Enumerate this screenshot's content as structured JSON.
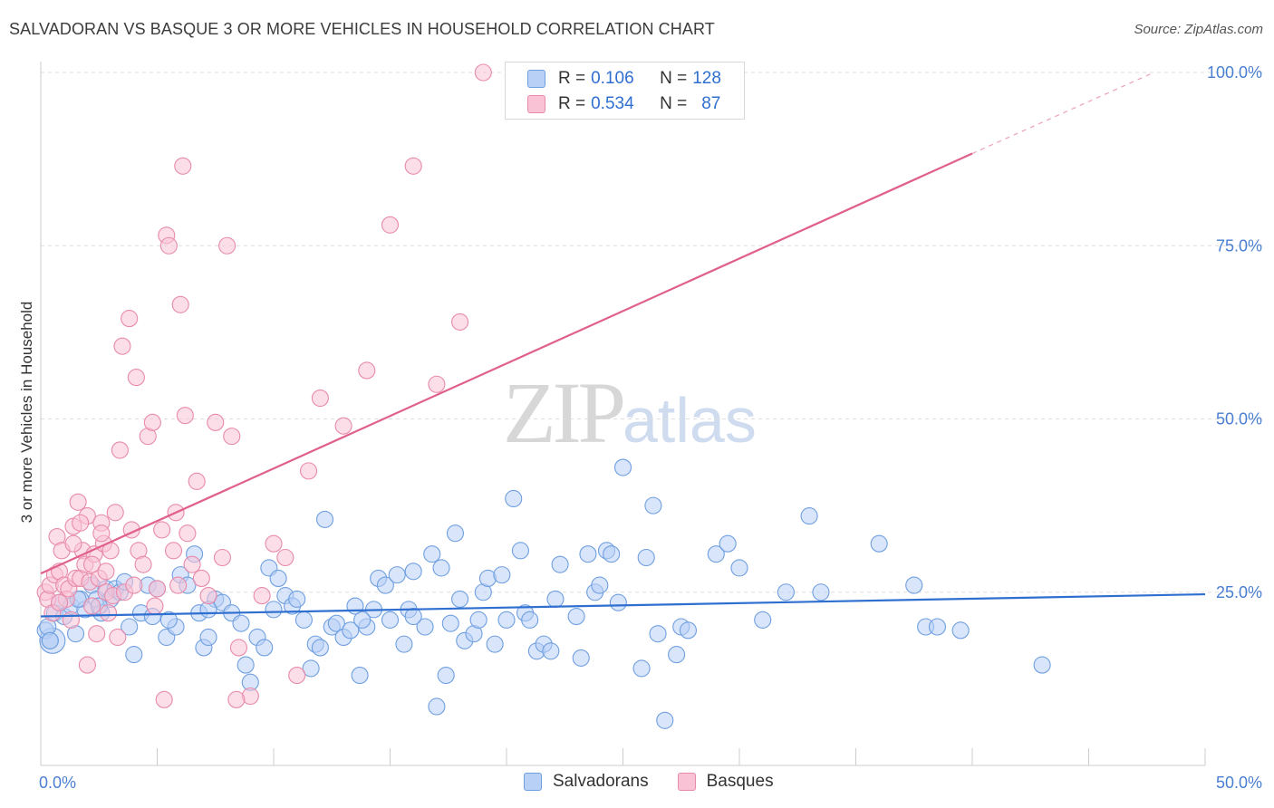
{
  "title": "SALVADORAN VS BASQUE 3 OR MORE VEHICLES IN HOUSEHOLD CORRELATION CHART",
  "source": "Source: ZipAtlas.com",
  "watermark": {
    "zip": "ZIP",
    "atlas": "atlas"
  },
  "legend": {
    "rows": [
      {
        "r_label": "R = ",
        "r_value": "0.106",
        "n_label": "N = ",
        "n_value": "128"
      },
      {
        "r_label": "R = ",
        "r_value": "0.534",
        "n_label": "N = ",
        "n_value": "87"
      }
    ]
  },
  "bottom_legend": {
    "items": [
      "Salvadorans",
      "Basques"
    ]
  },
  "colors": {
    "salvadorans_fill": "#b8d0f5",
    "salvadorans_stroke": "#6f9fe0",
    "salvadorans_line": "#2f6fd0",
    "basques_fill": "#f9c3d5",
    "basques_stroke": "#e88aaa",
    "basques_line": "#e0608a",
    "grid": "#dddddd",
    "axis_tick": "#4a7fd1"
  },
  "chart_data": {
    "type": "scatter",
    "title": "SALVADORAN VS BASQUE 3 OR MORE VEHICLES IN HOUSEHOLD CORRELATION CHART",
    "xlabel": "",
    "ylabel": "3 or more Vehicles in Household",
    "xlim": [
      0,
      50
    ],
    "ylim": [
      0,
      100
    ],
    "x_ticks": [
      "0.0%",
      "50.0%"
    ],
    "y_ticks": [
      "25.0%",
      "50.0%",
      "75.0%",
      "100.0%"
    ],
    "grid": true,
    "legend_position": "top-center",
    "series": [
      {
        "name": "Salvadorans",
        "R": 0.106,
        "N": 128,
        "trend": {
          "x": [
            0,
            50
          ],
          "y": [
            21.5,
            24.7
          ]
        },
        "points": [
          [
            0.2,
            19.5
          ],
          [
            0.4,
            18
          ],
          [
            0.6,
            22
          ],
          [
            0.8,
            23.5
          ],
          [
            1.0,
            21.5
          ],
          [
            1.3,
            23
          ],
          [
            1.5,
            19
          ],
          [
            1.7,
            24
          ],
          [
            1.9,
            22.5
          ],
          [
            2.2,
            26
          ],
          [
            2.4,
            24
          ],
          [
            2.6,
            22
          ],
          [
            2.8,
            25.5
          ],
          [
            3.0,
            24
          ],
          [
            3.2,
            25.5
          ],
          [
            3.4,
            25
          ],
          [
            3.6,
            26.5
          ],
          [
            3.8,
            20
          ],
          [
            4.0,
            16
          ],
          [
            4.3,
            22
          ],
          [
            4.6,
            26
          ],
          [
            4.8,
            21.5
          ],
          [
            5.0,
            25.5
          ],
          [
            5.4,
            18.5
          ],
          [
            5.8,
            20
          ],
          [
            6.0,
            27.5
          ],
          [
            6.3,
            26
          ],
          [
            6.6,
            30.5
          ],
          [
            6.8,
            22
          ],
          [
            7.0,
            17
          ],
          [
            7.2,
            18.5
          ],
          [
            7.5,
            24
          ],
          [
            7.8,
            23.5
          ],
          [
            8.2,
            22
          ],
          [
            8.6,
            20.5
          ],
          [
            8.8,
            14.5
          ],
          [
            9.0,
            12
          ],
          [
            9.3,
            18.5
          ],
          [
            9.6,
            17
          ],
          [
            9.8,
            28.5
          ],
          [
            10.0,
            22.5
          ],
          [
            10.2,
            27
          ],
          [
            10.5,
            24.5
          ],
          [
            10.8,
            23
          ],
          [
            11.0,
            24
          ],
          [
            11.3,
            21
          ],
          [
            11.6,
            14
          ],
          [
            11.8,
            17.5
          ],
          [
            12.0,
            17
          ],
          [
            12.2,
            35.5
          ],
          [
            12.5,
            20
          ],
          [
            12.7,
            20.5
          ],
          [
            13.0,
            18.5
          ],
          [
            13.3,
            19.5
          ],
          [
            13.5,
            23
          ],
          [
            13.7,
            13
          ],
          [
            14.0,
            20
          ],
          [
            14.3,
            22.5
          ],
          [
            14.5,
            27
          ],
          [
            14.8,
            26
          ],
          [
            15.0,
            21
          ],
          [
            15.3,
            27.5
          ],
          [
            15.6,
            17.5
          ],
          [
            15.8,
            22.5
          ],
          [
            16.0,
            28
          ],
          [
            16.5,
            20
          ],
          [
            16.8,
            30.5
          ],
          [
            17.0,
            8.5
          ],
          [
            17.2,
            28.5
          ],
          [
            17.4,
            13
          ],
          [
            17.6,
            20.5
          ],
          [
            17.8,
            33.5
          ],
          [
            18.0,
            24
          ],
          [
            18.2,
            18
          ],
          [
            18.6,
            19
          ],
          [
            18.8,
            21
          ],
          [
            19.0,
            25
          ],
          [
            19.2,
            27
          ],
          [
            19.5,
            17.5
          ],
          [
            19.8,
            27.5
          ],
          [
            20.0,
            21
          ],
          [
            20.3,
            38.5
          ],
          [
            20.6,
            31
          ],
          [
            20.8,
            22
          ],
          [
            21.0,
            21
          ],
          [
            21.3,
            16.5
          ],
          [
            21.6,
            17.5
          ],
          [
            21.9,
            16.5
          ],
          [
            22.1,
            24
          ],
          [
            22.3,
            29
          ],
          [
            23.0,
            21.5
          ],
          [
            23.2,
            15.5
          ],
          [
            23.5,
            30.5
          ],
          [
            23.8,
            25
          ],
          [
            24.0,
            26
          ],
          [
            24.3,
            31
          ],
          [
            24.5,
            30.5
          ],
          [
            24.8,
            23.5
          ],
          [
            25.0,
            43
          ],
          [
            25.8,
            14
          ],
          [
            26.0,
            30
          ],
          [
            26.3,
            37.5
          ],
          [
            26.5,
            19
          ],
          [
            26.8,
            6.5
          ],
          [
            27.3,
            16
          ],
          [
            27.5,
            20
          ],
          [
            27.8,
            19.5
          ],
          [
            29.0,
            30.5
          ],
          [
            29.5,
            32
          ],
          [
            30.0,
            28.5
          ],
          [
            31.0,
            21
          ],
          [
            32.0,
            25
          ],
          [
            33.0,
            36
          ],
          [
            33.5,
            25
          ],
          [
            36.0,
            32
          ],
          [
            37.5,
            26
          ],
          [
            38.0,
            20
          ],
          [
            38.5,
            20
          ],
          [
            39.5,
            19.5
          ],
          [
            43.0,
            14.5
          ],
          [
            1.6,
            24
          ],
          [
            2.5,
            23
          ],
          [
            5.5,
            21
          ],
          [
            7.2,
            22.5
          ],
          [
            13.8,
            21
          ],
          [
            16.0,
            21.5
          ],
          [
            0.3,
            20
          ],
          [
            0.4,
            18
          ]
        ]
      },
      {
        "name": "Basques",
        "R": 0.534,
        "N": 87,
        "trend": {
          "x": [
            0,
            40
          ],
          "y": [
            27.7,
            88.3
          ]
        },
        "trend_dashed": {
          "x": [
            40,
            47.8
          ],
          "y": [
            88.3,
            100
          ]
        },
        "points": [
          [
            0.2,
            25
          ],
          [
            0.3,
            24
          ],
          [
            0.4,
            26
          ],
          [
            0.5,
            22
          ],
          [
            0.6,
            27.5
          ],
          [
            0.7,
            33
          ],
          [
            0.8,
            28
          ],
          [
            0.9,
            31
          ],
          [
            1.0,
            26
          ],
          [
            1.1,
            24
          ],
          [
            1.2,
            25.5
          ],
          [
            1.3,
            21
          ],
          [
            1.4,
            34.5
          ],
          [
            1.5,
            27
          ],
          [
            1.6,
            38
          ],
          [
            1.7,
            27
          ],
          [
            1.8,
            31
          ],
          [
            1.9,
            29
          ],
          [
            2.0,
            36
          ],
          [
            2.1,
            26.5
          ],
          [
            2.2,
            23
          ],
          [
            2.3,
            30.5
          ],
          [
            2.4,
            19
          ],
          [
            2.5,
            27
          ],
          [
            2.6,
            35
          ],
          [
            2.7,
            32
          ],
          [
            2.8,
            25
          ],
          [
            2.9,
            22
          ],
          [
            3.0,
            31
          ],
          [
            3.1,
            24.5
          ],
          [
            3.2,
            36.5
          ],
          [
            3.4,
            45.5
          ],
          [
            3.6,
            25
          ],
          [
            3.8,
            64.5
          ],
          [
            3.9,
            34
          ],
          [
            4.0,
            26
          ],
          [
            4.2,
            31
          ],
          [
            4.4,
            29
          ],
          [
            4.6,
            47.5
          ],
          [
            4.8,
            49.5
          ],
          [
            5.0,
            25.5
          ],
          [
            5.2,
            34
          ],
          [
            5.4,
            76.5
          ],
          [
            5.5,
            75
          ],
          [
            5.7,
            31
          ],
          [
            5.9,
            26
          ],
          [
            6.0,
            66.5
          ],
          [
            6.1,
            86.5
          ],
          [
            6.2,
            50.5
          ],
          [
            6.5,
            29
          ],
          [
            6.7,
            41
          ],
          [
            6.9,
            27
          ],
          [
            7.2,
            24.5
          ],
          [
            7.5,
            49.5
          ],
          [
            7.8,
            30
          ],
          [
            8.0,
            75
          ],
          [
            8.2,
            47.5
          ],
          [
            8.5,
            17
          ],
          [
            9.0,
            10
          ],
          [
            9.5,
            24.5
          ],
          [
            10.0,
            32
          ],
          [
            10.5,
            30
          ],
          [
            11.0,
            13
          ],
          [
            11.5,
            42.5
          ],
          [
            12.0,
            53
          ],
          [
            13.0,
            49
          ],
          [
            14.0,
            57
          ],
          [
            15.0,
            78
          ],
          [
            16.0,
            86.5
          ],
          [
            17.0,
            55
          ],
          [
            18.0,
            64
          ],
          [
            19.0,
            100
          ],
          [
            3.3,
            18.5
          ],
          [
            4.9,
            23
          ],
          [
            1.7,
            35
          ],
          [
            2.2,
            29
          ],
          [
            2.8,
            28
          ],
          [
            2.0,
            14.5
          ],
          [
            3.5,
            60.5
          ],
          [
            4.1,
            56
          ],
          [
            5.8,
            36.5
          ],
          [
            1.4,
            32
          ],
          [
            0.8,
            23.5
          ],
          [
            2.6,
            33.5
          ],
          [
            5.3,
            9.5
          ],
          [
            6.3,
            33.5
          ],
          [
            8.4,
            9.5
          ]
        ]
      }
    ]
  }
}
